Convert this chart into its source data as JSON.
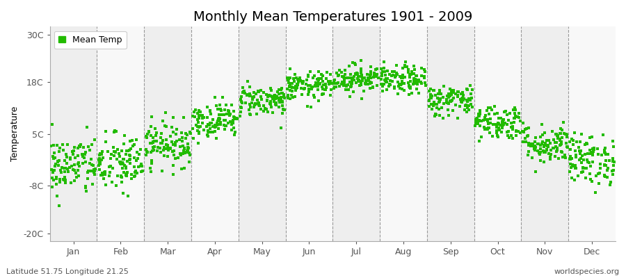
{
  "title": "Monthly Mean Temperatures 1901 - 2009",
  "ylabel": "Temperature",
  "bottom_left": "Latitude 51.75 Longitude 21.25",
  "bottom_right": "worldspecies.org",
  "legend_label": "Mean Temp",
  "dot_color": "#22bb00",
  "background_color": "#ffffff",
  "plot_bg_color": "#ffffff",
  "band_color_a": "#eeeeee",
  "band_color_b": "#f8f8f8",
  "yticks": [
    -20,
    -8,
    5,
    18,
    30
  ],
  "ytick_labels": [
    "-20C",
    "-8C",
    "5C",
    "18C",
    "30C"
  ],
  "ylim": [
    -22,
    32
  ],
  "months": [
    "Jan",
    "Feb",
    "Mar",
    "Apr",
    "May",
    "Jun",
    "Jul",
    "Aug",
    "Sep",
    "Oct",
    "Nov",
    "Dec"
  ],
  "mean_temps": [
    -3.0,
    -2.5,
    2.5,
    8.5,
    13.5,
    17.0,
    19.0,
    18.5,
    13.5,
    8.0,
    2.5,
    -1.5
  ],
  "std_temps": [
    3.8,
    3.8,
    2.8,
    2.2,
    2.0,
    1.8,
    1.8,
    1.8,
    2.0,
    2.2,
    2.5,
    3.2
  ],
  "n_years": 109,
  "title_fontsize": 14,
  "axis_fontsize": 9,
  "legend_fontsize": 9,
  "dot_size": 5,
  "dpi": 100
}
